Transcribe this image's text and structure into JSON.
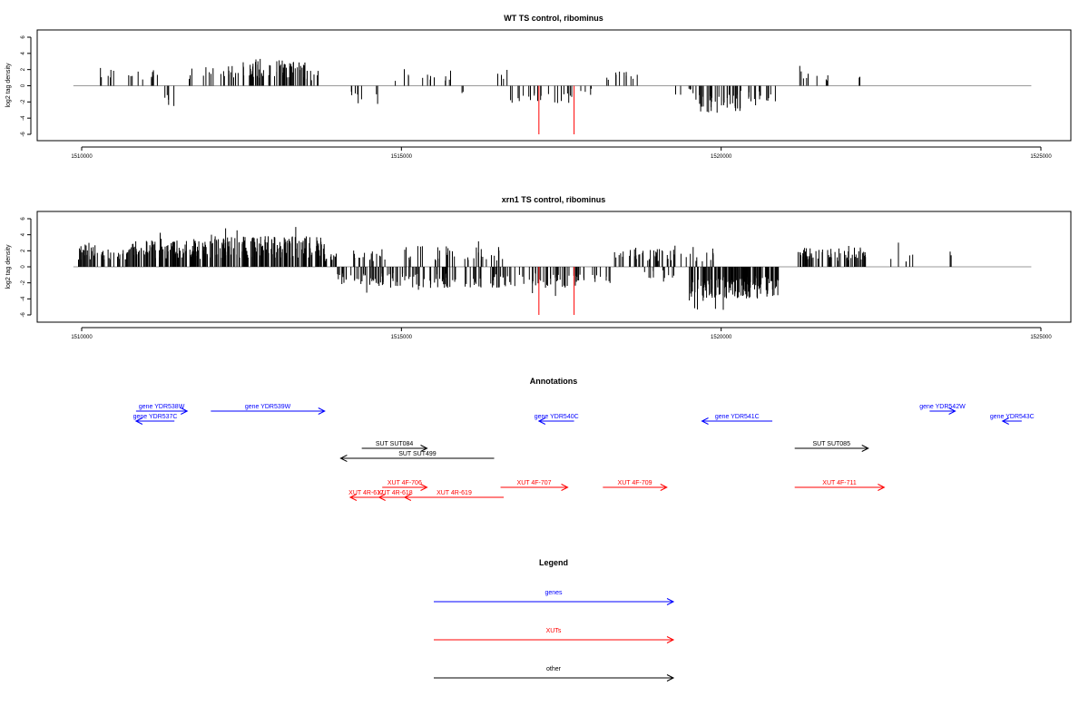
{
  "colors": {
    "gene": "#0000ff",
    "xut": "#ff0000",
    "other": "#000000",
    "baseline": "#9a9a9a",
    "highlight": "#ff0000",
    "bar": "#000000"
  },
  "chart_data": [
    {
      "type": "bar",
      "title": "WT TS control, ribominus",
      "ylabel": "log2 tag density",
      "xlim": [
        1510000,
        1525000
      ],
      "ylim": [
        -6,
        6
      ],
      "x_ticks": [
        1510000,
        1515000,
        1520000,
        1525000
      ],
      "x_tick_labels": [
        "1510000",
        "1515000",
        "1520000",
        "1525000"
      ],
      "y_ticks": [
        -6,
        -4,
        -2,
        0,
        2,
        4,
        6
      ],
      "y_tick_labels": [
        "-6",
        "-4",
        "-2",
        "0",
        "2",
        "4",
        "6"
      ],
      "baseline_range": [
        1509870,
        1524850
      ],
      "highlighted_bars": [
        {
          "x": 1517150,
          "y": -6
        },
        {
          "x": 1517700,
          "y": -6
        }
      ],
      "density": [
        {
          "start": 1510250,
          "end": 1510500,
          "density": 0.35,
          "amp": 2.0
        },
        {
          "start": 1510600,
          "end": 1511200,
          "density": 0.25,
          "amp": 1.8
        },
        {
          "start": 1511300,
          "end": 1511450,
          "density": 0.5,
          "amp": -2.5
        },
        {
          "start": 1511600,
          "end": 1511800,
          "density": 0.2,
          "amp": 1.6
        },
        {
          "start": 1511900,
          "end": 1512400,
          "density": 0.4,
          "amp": 2.0
        },
        {
          "start": 1512400,
          "end": 1513500,
          "density": 0.9,
          "amp": 2.8
        },
        {
          "start": 1513500,
          "end": 1513700,
          "density": 0.5,
          "amp": 1.8
        },
        {
          "start": 1514200,
          "end": 1514500,
          "density": 0.3,
          "amp": -2.0
        },
        {
          "start": 1514600,
          "end": 1514700,
          "density": 0.3,
          "amp": -2.1
        },
        {
          "start": 1514900,
          "end": 1515200,
          "density": 0.2,
          "amp": 1.3
        },
        {
          "start": 1515300,
          "end": 1515800,
          "density": 0.25,
          "amp": 1.8
        },
        {
          "start": 1515900,
          "end": 1516000,
          "density": 0.3,
          "amp": -1.0
        },
        {
          "start": 1516500,
          "end": 1516700,
          "density": 0.3,
          "amp": 1.8
        },
        {
          "start": 1516700,
          "end": 1517700,
          "density": 0.3,
          "amp": -1.8
        },
        {
          "start": 1517800,
          "end": 1518000,
          "density": 0.3,
          "amp": -1.0
        },
        {
          "start": 1518200,
          "end": 1518700,
          "density": 0.3,
          "amp": 1.6
        },
        {
          "start": 1519200,
          "end": 1519600,
          "density": 0.2,
          "amp": -1.0
        },
        {
          "start": 1519600,
          "end": 1520300,
          "density": 0.8,
          "amp": -2.8
        },
        {
          "start": 1520300,
          "end": 1520900,
          "density": 0.4,
          "amp": -1.8
        },
        {
          "start": 1521200,
          "end": 1521700,
          "density": 0.25,
          "amp": 1.6
        },
        {
          "start": 1522100,
          "end": 1522200,
          "density": 0.3,
          "amp": 1.0
        }
      ]
    },
    {
      "type": "bar",
      "title": "xrn1 TS control, ribominus",
      "ylabel": "log2 tag density",
      "xlim": [
        1510000,
        1525000
      ],
      "ylim": [
        -6,
        6
      ],
      "x_ticks": [
        1510000,
        1515000,
        1520000,
        1525000
      ],
      "x_tick_labels": [
        "1510000",
        "1515000",
        "1520000",
        "1525000"
      ],
      "y_ticks": [
        -6,
        -4,
        -2,
        0,
        2,
        4,
        6
      ],
      "y_tick_labels": [
        "-6",
        "-4",
        "-2",
        "0",
        "2",
        "4",
        "6"
      ],
      "baseline_range": [
        1509870,
        1524850
      ],
      "highlighted_bars": [
        {
          "x": 1517150,
          "y": -6
        },
        {
          "x": 1517700,
          "y": -6
        }
      ],
      "density": [
        {
          "start": 1509950,
          "end": 1510300,
          "density": 1.0,
          "amp": 2.5
        },
        {
          "start": 1510300,
          "end": 1510750,
          "density": 0.8,
          "amp": 1.8
        },
        {
          "start": 1510750,
          "end": 1512000,
          "density": 1.3,
          "amp": 2.8
        },
        {
          "start": 1512000,
          "end": 1513800,
          "density": 1.5,
          "amp": 3.2
        },
        {
          "start": 1513800,
          "end": 1514000,
          "density": 0.8,
          "amp": 1.6
        },
        {
          "start": 1514000,
          "end": 1514800,
          "density": 0.7,
          "amp": -2.0
        },
        {
          "start": 1514200,
          "end": 1514800,
          "density": 0.4,
          "amp": 2.0
        },
        {
          "start": 1514800,
          "end": 1516000,
          "density": 0.6,
          "amp": -2.2
        },
        {
          "start": 1515000,
          "end": 1516600,
          "density": 0.35,
          "amp": 2.2
        },
        {
          "start": 1516000,
          "end": 1517800,
          "density": 0.6,
          "amp": -2.2
        },
        {
          "start": 1517800,
          "end": 1518300,
          "density": 0.3,
          "amp": -1.6
        },
        {
          "start": 1518300,
          "end": 1519300,
          "density": 0.6,
          "amp": 1.9
        },
        {
          "start": 1518800,
          "end": 1519300,
          "density": 0.3,
          "amp": -1.2
        },
        {
          "start": 1519300,
          "end": 1519900,
          "density": 0.3,
          "amp": 1.5
        },
        {
          "start": 1519500,
          "end": 1520900,
          "density": 1.6,
          "amp": -3.3
        },
        {
          "start": 1521200,
          "end": 1522300,
          "density": 0.9,
          "amp": 2.0
        },
        {
          "start": 1522600,
          "end": 1523000,
          "density": 0.2,
          "amp": 1.8
        },
        {
          "start": 1523500,
          "end": 1523600,
          "density": 0.3,
          "amp": 1.8
        }
      ]
    }
  ],
  "annotations": {
    "title": "Annotations",
    "xlim": [
      1510000,
      1525000
    ],
    "features": [
      {
        "label": "gene YDR538W",
        "start": 1510850,
        "end": 1511650,
        "row": 0,
        "dir": "R",
        "kind": "gene"
      },
      {
        "label": "gene YDR537C",
        "start": 1510850,
        "end": 1511450,
        "row": 1,
        "dir": "L",
        "kind": "gene"
      },
      {
        "label": "gene YDR539W",
        "start": 1512020,
        "end": 1513800,
        "row": 0,
        "dir": "R",
        "kind": "gene"
      },
      {
        "label": "gene YDR540C",
        "start": 1517150,
        "end": 1517700,
        "row": 1,
        "dir": "L",
        "kind": "gene"
      },
      {
        "label": "gene YDR541C",
        "start": 1519700,
        "end": 1520800,
        "row": 1,
        "dir": "L",
        "kind": "gene"
      },
      {
        "label": "gene YDR542W",
        "start": 1523260,
        "end": 1523660,
        "row": 0,
        "dir": "R",
        "kind": "gene"
      },
      {
        "label": "gene YDR543C",
        "start": 1524400,
        "end": 1524700,
        "row": 1,
        "dir": "L",
        "kind": "gene"
      },
      {
        "label": "SUT SUT084",
        "start": 1514380,
        "end": 1515400,
        "row": 3,
        "dir": "R",
        "kind": "other"
      },
      {
        "label": "SUT SUT499",
        "start": 1514050,
        "end": 1516450,
        "row": 4,
        "dir": "L",
        "kind": "other"
      },
      {
        "label": "SUT SUT085",
        "start": 1521150,
        "end": 1522300,
        "row": 3,
        "dir": "R",
        "kind": "other"
      },
      {
        "label": "XUT 4F-706",
        "start": 1514700,
        "end": 1515400,
        "row": 6,
        "dir": "R",
        "kind": "xut"
      },
      {
        "label": "XUT 4F-707",
        "start": 1516550,
        "end": 1517600,
        "row": 6,
        "dir": "R",
        "kind": "xut"
      },
      {
        "label": "XUT 4F-709",
        "start": 1518150,
        "end": 1519150,
        "row": 6,
        "dir": "R",
        "kind": "xut"
      },
      {
        "label": "XUT 4F-711",
        "start": 1521150,
        "end": 1522550,
        "row": 6,
        "dir": "R",
        "kind": "xut"
      },
      {
        "label": "XUT 4R-617",
        "start": 1514200,
        "end": 1514700,
        "row": 7,
        "dir": "L",
        "kind": "xut"
      },
      {
        "label": "XUT 4R-618",
        "start": 1514650,
        "end": 1515150,
        "row": 7,
        "dir": "L",
        "kind": "xut"
      },
      {
        "label": "XUT 4R-619",
        "start": 1515050,
        "end": 1516600,
        "row": 7,
        "dir": "L",
        "kind": "xut"
      }
    ]
  },
  "legend": {
    "title": "Legend",
    "items": [
      {
        "label": "genes",
        "kind": "gene"
      },
      {
        "label": "XUTs",
        "kind": "xut"
      },
      {
        "label": "other",
        "kind": "other"
      }
    ]
  }
}
